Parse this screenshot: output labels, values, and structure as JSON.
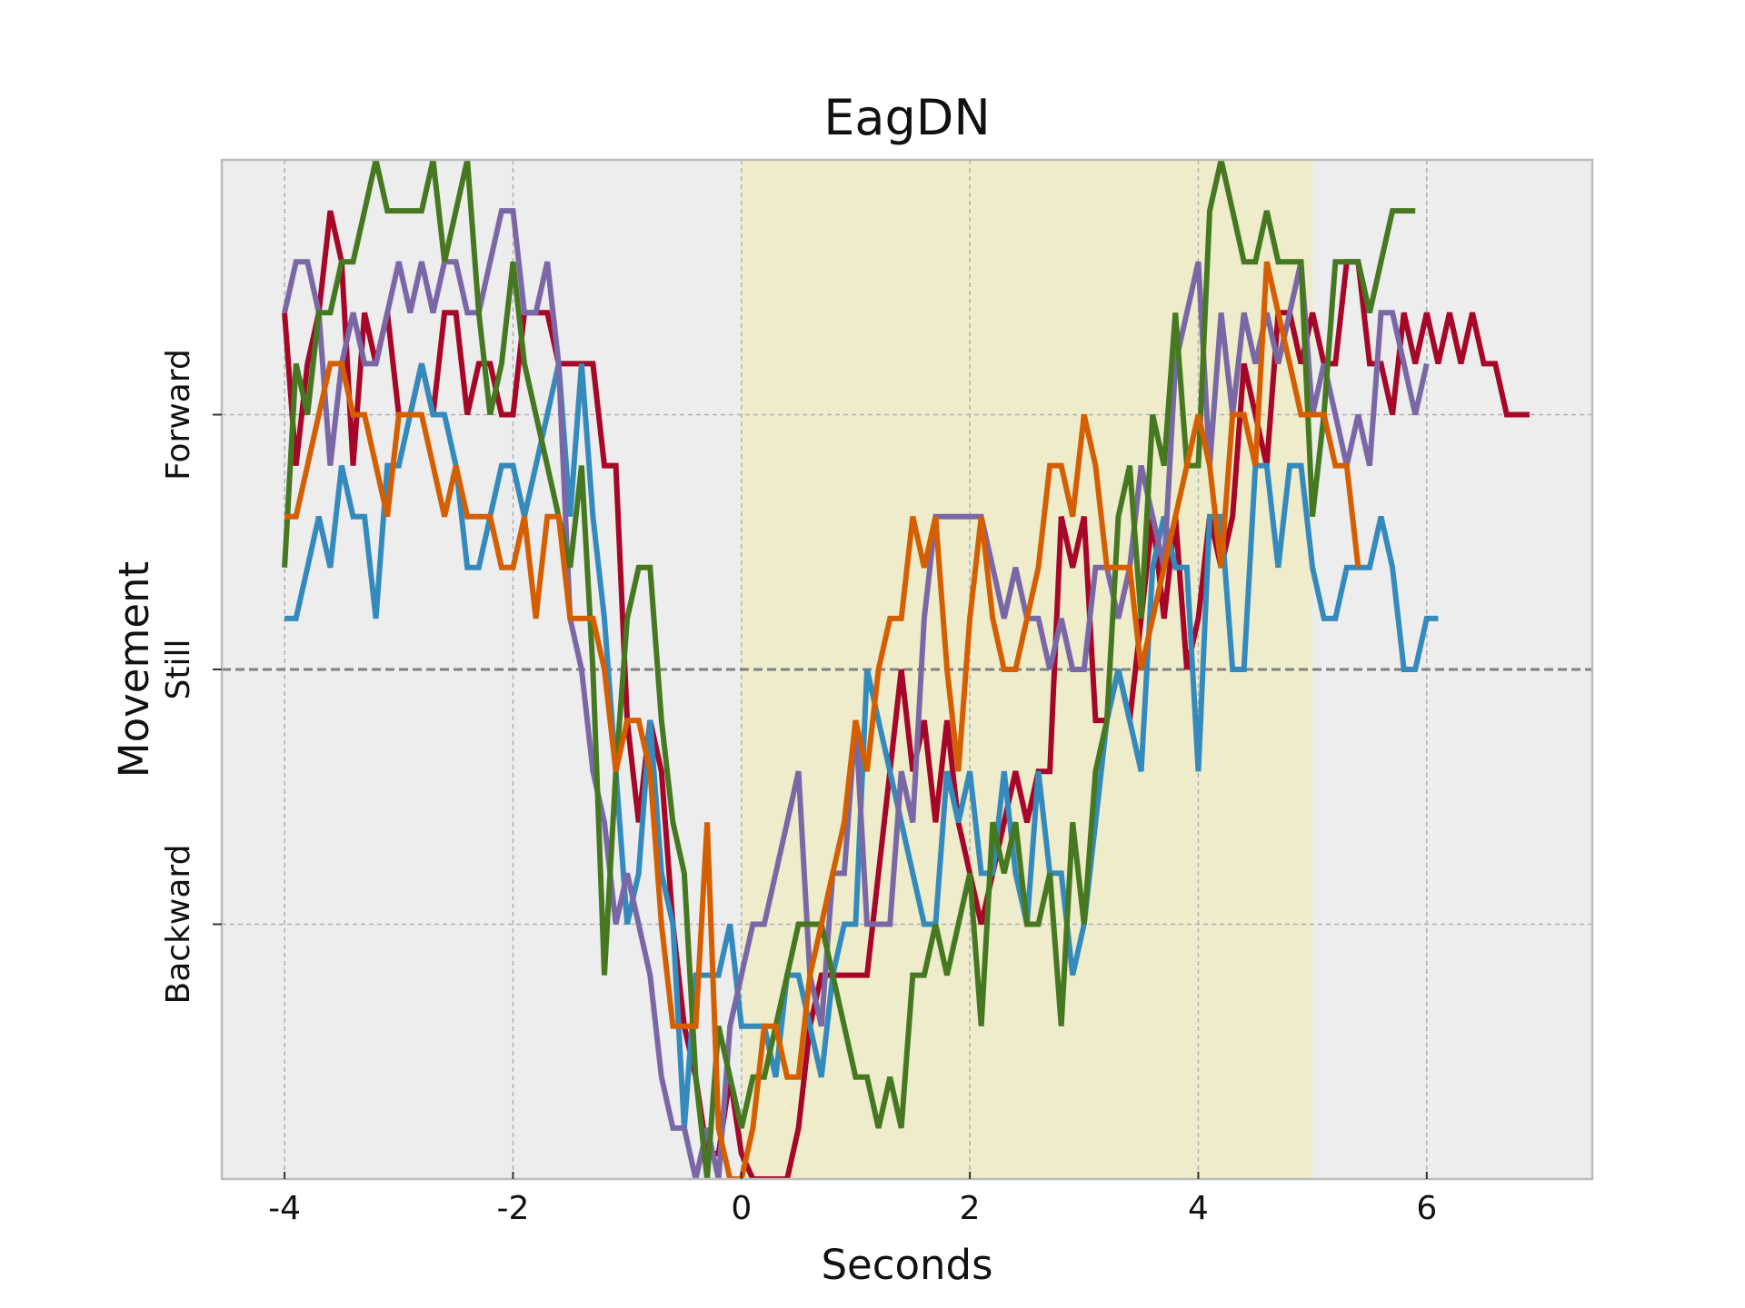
{
  "chart_data": {
    "type": "line",
    "title": "EagDN",
    "xlabel": "Seconds",
    "ylabel": "Movement",
    "xlim": [
      -4.55,
      7.45
    ],
    "ylim": [
      -1.0,
      1.0
    ],
    "grid": true,
    "legend": "none",
    "background": "#ededed",
    "xticks": [
      -4,
      -2,
      0,
      2,
      4,
      6
    ],
    "xtick_labels": [
      "-4",
      "-2",
      "0",
      "2",
      "4",
      "6"
    ],
    "yticks": [
      {
        "value": 0.5,
        "label": "Forward"
      },
      {
        "value": 0.0,
        "label": "Still"
      },
      {
        "value": -0.5,
        "label": "Backward"
      }
    ],
    "reference_line": {
      "y": 0.0,
      "style": "dashed",
      "color": "#808080"
    },
    "highlight_span": {
      "x0": 0.0,
      "x1": 5.0,
      "color": "#eeeccb"
    },
    "x_start": -4.0,
    "x_step": 0.1,
    "series": [
      {
        "color": "#a60628",
        "values": [
          0.7,
          0.4,
          0.6,
          0.7,
          0.9,
          0.8,
          0.4,
          0.7,
          0.6,
          0.7,
          0.5,
          0.5,
          0.6,
          0.5,
          0.7,
          0.7,
          0.5,
          0.6,
          0.6,
          0.5,
          0.5,
          0.7,
          0.7,
          0.7,
          0.6,
          0.6,
          0.6,
          0.6,
          0.4,
          0.4,
          -0.1,
          -0.3,
          -0.1,
          -0.2,
          -0.5,
          -0.7,
          -0.8,
          -0.95,
          -0.95,
          -0.8,
          -0.95,
          -1.0,
          -1.0,
          -1.0,
          -1.0,
          -0.9,
          -0.7,
          -0.6,
          -0.6,
          -0.6,
          -0.6,
          -0.6,
          -0.4,
          -0.2,
          0.0,
          -0.2,
          -0.1,
          -0.3,
          -0.1,
          -0.3,
          -0.4,
          -0.5,
          -0.4,
          -0.3,
          -0.2,
          -0.3,
          -0.2,
          -0.2,
          0.3,
          0.2,
          0.3,
          -0.1,
          -0.1,
          0.0,
          -0.1,
          0.1,
          0.3,
          0.1,
          0.3,
          0.0,
          0.1,
          0.3,
          0.2,
          0.3,
          0.6,
          0.5,
          0.4,
          0.7,
          0.7,
          0.6,
          0.7,
          0.6,
          0.6,
          0.8,
          0.8,
          0.6,
          0.6,
          0.5,
          0.7,
          0.6,
          0.7,
          0.6,
          0.7,
          0.6,
          0.7,
          0.6,
          0.6,
          0.5,
          0.5,
          0.5
        ]
      },
      {
        "color": "#348abd",
        "values": [
          0.1,
          0.1,
          0.2,
          0.3,
          0.2,
          0.4,
          0.3,
          0.3,
          0.1,
          0.4,
          0.4,
          0.5,
          0.6,
          0.5,
          0.5,
          0.4,
          0.2,
          0.2,
          0.3,
          0.4,
          0.4,
          0.3,
          0.4,
          0.5,
          0.6,
          0.3,
          0.6,
          0.3,
          0.1,
          -0.2,
          -0.5,
          -0.4,
          -0.1,
          -0.4,
          -0.5,
          -0.9,
          -0.6,
          -0.6,
          -0.6,
          -0.5,
          -0.7,
          -0.7,
          -0.7,
          -0.8,
          -0.6,
          -0.6,
          -0.7,
          -0.8,
          -0.6,
          -0.5,
          -0.5,
          0.0,
          -0.1,
          -0.2,
          -0.3,
          -0.4,
          -0.5,
          -0.5,
          -0.2,
          -0.3,
          -0.2,
          -0.4,
          -0.4,
          -0.2,
          -0.4,
          -0.5,
          -0.2,
          -0.4,
          -0.4,
          -0.6,
          -0.5,
          -0.3,
          -0.1,
          0.0,
          -0.1,
          -0.2,
          0.2,
          0.3,
          0.2,
          0.2,
          -0.2,
          0.3,
          0.3,
          0.0,
          0.0,
          0.4,
          0.4,
          0.2,
          0.4,
          0.4,
          0.2,
          0.1,
          0.1,
          0.2,
          0.2,
          0.2,
          0.3,
          0.2,
          0.0,
          0.0,
          0.1,
          0.1
        ]
      },
      {
        "color": "#7a68a6",
        "values": [
          0.7,
          0.8,
          0.8,
          0.7,
          0.4,
          0.6,
          0.7,
          0.6,
          0.6,
          0.7,
          0.8,
          0.7,
          0.8,
          0.7,
          0.8,
          0.8,
          0.7,
          0.7,
          0.8,
          0.9,
          0.9,
          0.7,
          0.7,
          0.8,
          0.6,
          0.1,
          0.0,
          -0.2,
          -0.3,
          -0.5,
          -0.4,
          -0.5,
          -0.6,
          -0.8,
          -0.9,
          -0.9,
          -1.0,
          -0.9,
          -1.0,
          -0.7,
          -0.6,
          -0.5,
          -0.5,
          -0.4,
          -0.3,
          -0.2,
          -0.6,
          -0.7,
          -0.4,
          -0.4,
          -0.1,
          -0.5,
          -0.5,
          -0.5,
          -0.2,
          -0.3,
          0.1,
          0.3,
          0.3,
          0.3,
          0.3,
          0.3,
          0.2,
          0.1,
          0.2,
          0.1,
          0.1,
          0.0,
          0.1,
          0.0,
          0.0,
          0.2,
          0.2,
          0.1,
          0.2,
          0.4,
          0.3,
          0.2,
          0.6,
          0.7,
          0.8,
          0.4,
          0.7,
          0.5,
          0.7,
          0.6,
          0.7,
          0.6,
          0.7,
          0.8,
          0.5,
          0.6,
          0.5,
          0.4,
          0.5,
          0.4,
          0.7,
          0.7,
          0.6,
          0.5,
          0.6
        ]
      },
      {
        "color": "#467821",
        "values": [
          0.2,
          0.6,
          0.5,
          0.7,
          0.7,
          0.8,
          0.8,
          0.9,
          1.0,
          0.9,
          0.9,
          0.9,
          0.9,
          1.0,
          0.8,
          0.9,
          1.0,
          0.7,
          0.5,
          0.6,
          0.8,
          0.6,
          0.5,
          0.4,
          0.3,
          0.2,
          0.4,
          0.0,
          -0.6,
          -0.2,
          0.1,
          0.2,
          0.2,
          -0.1,
          -0.3,
          -0.4,
          -0.8,
          -1.0,
          -0.7,
          -0.8,
          -0.9,
          -0.8,
          -0.8,
          -0.7,
          -0.6,
          -0.5,
          -0.5,
          -0.5,
          -0.6,
          -0.7,
          -0.8,
          -0.8,
          -0.9,
          -0.8,
          -0.9,
          -0.6,
          -0.6,
          -0.5,
          -0.6,
          -0.5,
          -0.4,
          -0.7,
          -0.3,
          -0.4,
          -0.3,
          -0.5,
          -0.5,
          -0.4,
          -0.7,
          -0.3,
          -0.5,
          -0.2,
          -0.1,
          0.3,
          0.4,
          0.1,
          0.5,
          0.4,
          0.7,
          0.4,
          0.4,
          0.9,
          1.0,
          0.9,
          0.8,
          0.8,
          0.9,
          0.8,
          0.8,
          0.8,
          0.3,
          0.5,
          0.8,
          0.8,
          0.8,
          0.7,
          0.8,
          0.9,
          0.9,
          0.9
        ]
      },
      {
        "color": "#d55e00",
        "values": [
          0.3,
          0.3,
          0.4,
          0.5,
          0.6,
          0.6,
          0.5,
          0.5,
          0.4,
          0.3,
          0.5,
          0.5,
          0.5,
          0.4,
          0.3,
          0.4,
          0.3,
          0.3,
          0.3,
          0.2,
          0.2,
          0.3,
          0.1,
          0.3,
          0.3,
          0.1,
          0.1,
          0.1,
          0.0,
          -0.2,
          -0.1,
          -0.1,
          -0.2,
          -0.5,
          -0.7,
          -0.7,
          -0.7,
          -0.3,
          -0.9,
          -1.0,
          -1.0,
          -0.9,
          -0.7,
          -0.7,
          -0.8,
          -0.8,
          -0.6,
          -0.5,
          -0.4,
          -0.3,
          -0.1,
          -0.2,
          0.0,
          0.1,
          0.1,
          0.3,
          0.2,
          0.3,
          0.0,
          -0.2,
          0.1,
          0.3,
          0.1,
          0.0,
          0.0,
          0.1,
          0.2,
          0.4,
          0.4,
          0.3,
          0.5,
          0.4,
          0.2,
          0.2,
          0.2,
          0.0,
          0.1,
          0.2,
          0.3,
          0.4,
          0.5,
          0.4,
          0.2,
          0.5,
          0.5,
          0.4,
          0.8,
          0.7,
          0.6,
          0.5,
          0.5,
          0.5,
          0.4,
          0.4,
          0.2
        ]
      }
    ]
  }
}
